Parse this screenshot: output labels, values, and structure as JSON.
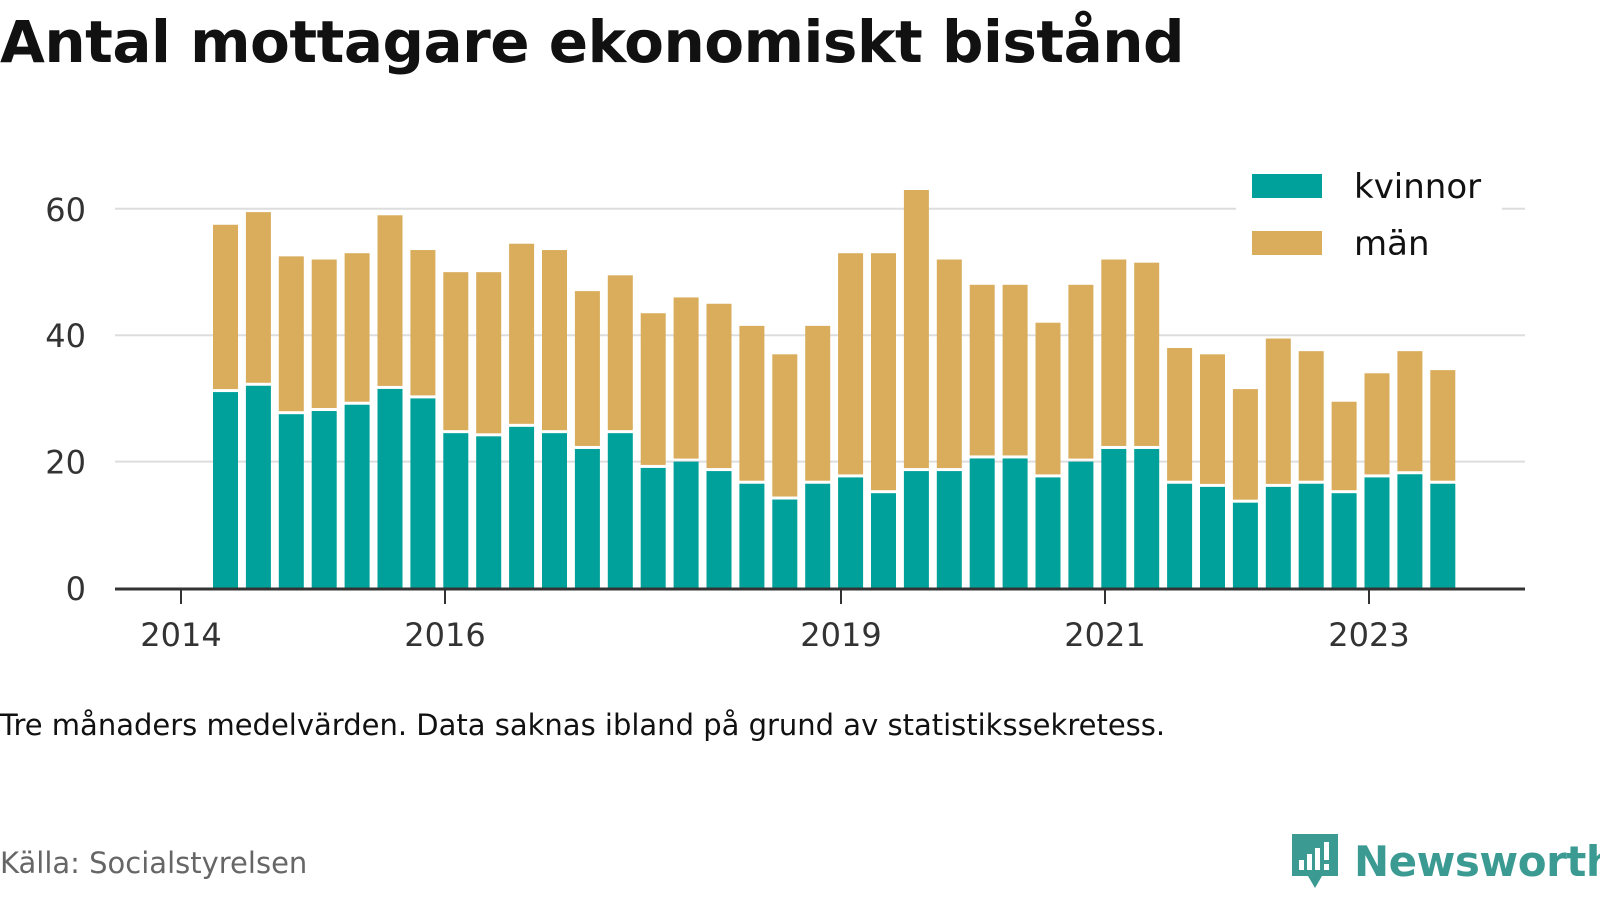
{
  "title": "Antal mottagare ekonomiskt bistånd",
  "note": "Tre månaders medelvärden. Data saknas ibland på grund av statistikssekretess.",
  "source": "Källa: Socialstyrelsen",
  "brand": {
    "name": "Newsworthy",
    "icon": "newsworthy-logo-icon",
    "color": "#3b9a92"
  },
  "chart_data": {
    "type": "bar",
    "stacked": true,
    "x_ticks": [
      "2014",
      "2016",
      "2019",
      "2021",
      "2023"
    ],
    "yticks": [
      0,
      20,
      40,
      60
    ],
    "ylim": [
      0,
      65
    ],
    "grid": true,
    "legend_position": "top-right",
    "series": [
      {
        "name": "kvinnor",
        "color": "#00a19a",
        "values": [
          31,
          32,
          27.5,
          28,
          29,
          31.5,
          30,
          24.5,
          24,
          25.5,
          24.5,
          22,
          24.5,
          19,
          20,
          18.5,
          16.5,
          14,
          16.5,
          17.5,
          15,
          18.5,
          18.5,
          20.5,
          20.5,
          17.5,
          20,
          22,
          22,
          16.5,
          16,
          13.5,
          16,
          16.5,
          15,
          17.5,
          18,
          16.5
        ]
      },
      {
        "name": "män",
        "color": "#d9ad5b",
        "values": [
          26,
          27,
          24.5,
          23.5,
          23.5,
          27,
          23,
          25,
          25.5,
          28.5,
          28.5,
          24.5,
          24.5,
          24,
          25.5,
          26,
          24.5,
          22.5,
          24.5,
          35,
          37.5,
          44,
          33,
          27,
          27,
          24,
          27.5,
          29.5,
          29,
          21,
          20.5,
          17.5,
          23,
          20.5,
          14,
          16,
          19,
          17.5
        ]
      }
    ]
  }
}
